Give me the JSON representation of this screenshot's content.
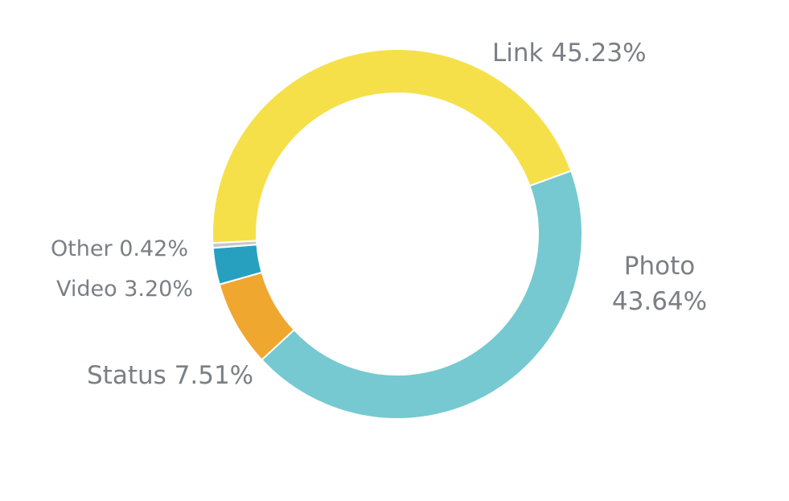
{
  "chart_data": {
    "type": "donut",
    "categories": [
      "Link",
      "Photo",
      "Status",
      "Video",
      "Other"
    ],
    "values": [
      45.23,
      43.64,
      7.51,
      3.2,
      0.42
    ],
    "value_labels": [
      "45.23%",
      "43.64%",
      "7.51%",
      "3.20%",
      "0.42%"
    ],
    "colors": [
      "#f6e049",
      "#76c9d0",
      "#f0a730",
      "#27a0c0",
      "#c8c8c8"
    ]
  }
}
